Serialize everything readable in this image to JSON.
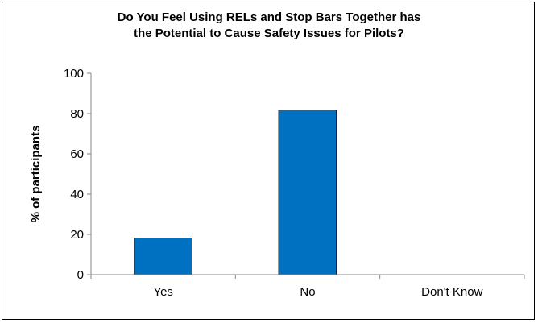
{
  "chart_data": {
    "type": "bar",
    "title_lines": [
      "Do You Feel Using RELs and Stop Bars Together has",
      "the Potential to Cause Safety Issues for Pilots?"
    ],
    "xlabel": "",
    "ylabel": "% of participants",
    "categories": [
      "Yes",
      "No",
      "Don't Know"
    ],
    "values": [
      18.2,
      81.8,
      0
    ],
    "ylim": [
      0,
      100
    ],
    "yticks": [
      0,
      20,
      40,
      60,
      80,
      100
    ],
    "grid": false,
    "legend": "none",
    "bar_color": "#0070C0",
    "bar_edge_color": "#000000"
  }
}
